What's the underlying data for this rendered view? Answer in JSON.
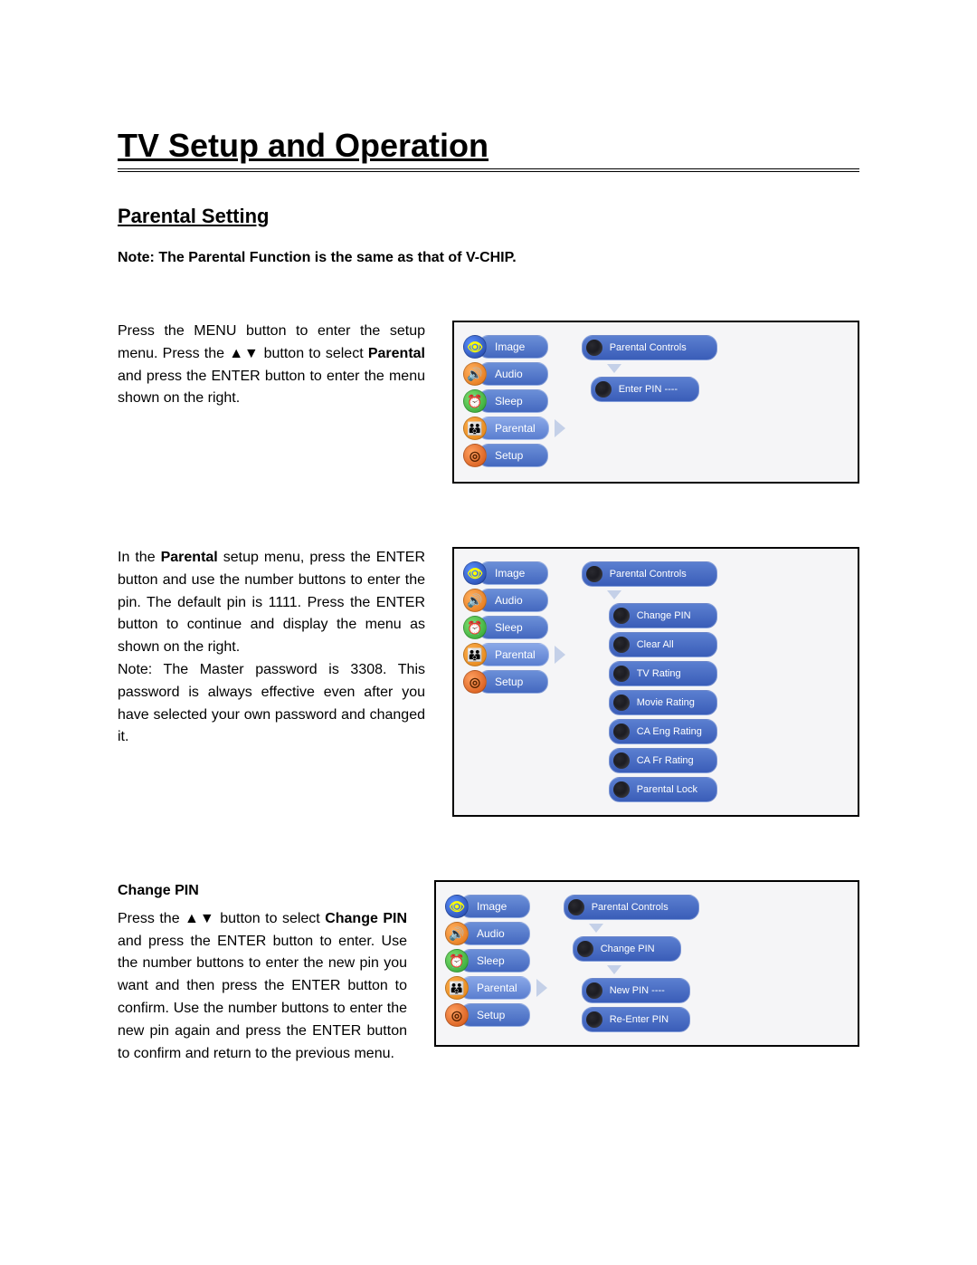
{
  "title": "TV Setup and Operation",
  "subtitle": "Parental Setting",
  "note": "Note: The Parental Function is the same as that of V-CHIP.",
  "colors": {
    "pill_grad_top": "#6b8fd8",
    "pill_grad_bottom": "#4468bf",
    "pill_sel_top": "#8aa8e8",
    "pill_sel_bottom": "#5a7ed0",
    "right_pill_top": "#5b7fd0",
    "right_pill_bottom": "#3a5db8",
    "arrow_color": "#c4d0e8",
    "border": "#000000",
    "background": "#ffffff",
    "panel_bg": "#f5f5f7"
  },
  "left_menu": [
    {
      "label": "Image",
      "icon": "eye",
      "icon_class": "ic-image",
      "glyph": "👁"
    },
    {
      "label": "Audio",
      "icon": "speaker",
      "icon_class": "ic-audio",
      "glyph": "🔊"
    },
    {
      "label": "Sleep",
      "icon": "clock",
      "icon_class": "ic-sleep",
      "glyph": "⏰"
    },
    {
      "label": "Parental",
      "icon": "person",
      "icon_class": "ic-parental",
      "glyph": "👪"
    },
    {
      "label": "Setup",
      "icon": "gear",
      "icon_class": "ic-setup",
      "glyph": "◎"
    }
  ],
  "section1": {
    "text_pre": "Press the MENU button to enter the setup menu. Press the ▲▼ button to select ",
    "text_bold": "Parental",
    "text_post": " and press the ENTER button to enter the menu shown on the right.",
    "selected_index": 3,
    "right": {
      "header": "Parental Controls",
      "items": [
        {
          "label": "Enter PIN  ----"
        }
      ]
    }
  },
  "section2": {
    "text_pre": "In the ",
    "text_bold": "Parental",
    "text_post": " setup menu, press the ENTER button and use the number buttons to enter the pin. The default pin is 1111. Press the ENTER button to continue and display the menu as shown on the right.",
    "text_note": "Note: The Master password is 3308. This password is always effective even after you have selected your own password and changed it.",
    "selected_index": 3,
    "right": {
      "header": "Parental Controls",
      "items": [
        {
          "label": "Change PIN"
        },
        {
          "label": "Clear All"
        },
        {
          "label": "TV Rating"
        },
        {
          "label": "Movie Rating"
        },
        {
          "label": "CA Eng Rating"
        },
        {
          "label": "CA Fr Rating"
        },
        {
          "label": "Parental Lock"
        }
      ]
    }
  },
  "section3": {
    "heading": "Change PIN",
    "text_pre": "Press the ▲▼ button to select ",
    "text_bold": "Change PIN",
    "text_post": " and press the ENTER button to enter. Use the number buttons to enter the new pin you want and then press the ENTER button to confirm. Use the number buttons to enter the new pin again and press the ENTER button to confirm and return to the previous menu.",
    "selected_index": 3,
    "right": {
      "header": "Parental Controls",
      "sub_header": "Change PIN",
      "items": [
        {
          "label": "New PIN   ----"
        },
        {
          "label": "Re-Enter PIN"
        }
      ]
    }
  }
}
